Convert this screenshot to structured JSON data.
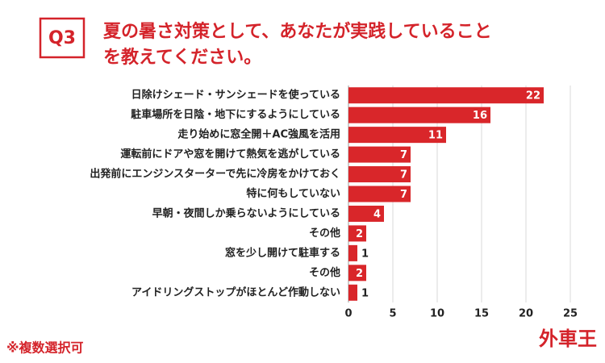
{
  "chart_data": {
    "type": "bar",
    "orientation": "horizontal",
    "badge": "Q3",
    "title": [
      "夏の暑さ対策として、あなたが実践していること",
      "を教えてください。"
    ],
    "note": "※複数選択可",
    "brand": "外車王",
    "color": "#d9262a",
    "categories": [
      "日除けシェード・サンシェードを使っている",
      "駐車場所を日陰・地下にするようにしている",
      "走り始めに窓全開＋AC強風を活用",
      "運転前にドアや窓を開けて熱気を逃がしている",
      "出発前にエンジンスターターで先に冷房をかけておく",
      "特に何もしていない",
      "早朝・夜間しか乗らないようにしている",
      "その他",
      "窓を少し開けて駐車する",
      "その他",
      "アイドリングストップがほとんど作動しない"
    ],
    "values": [
      22,
      16,
      11,
      7,
      7,
      7,
      4,
      2,
      1,
      2,
      1
    ],
    "xlim": [
      0,
      25
    ],
    "xticks": [
      0,
      5,
      10,
      15,
      20,
      25
    ],
    "grid": true
  }
}
